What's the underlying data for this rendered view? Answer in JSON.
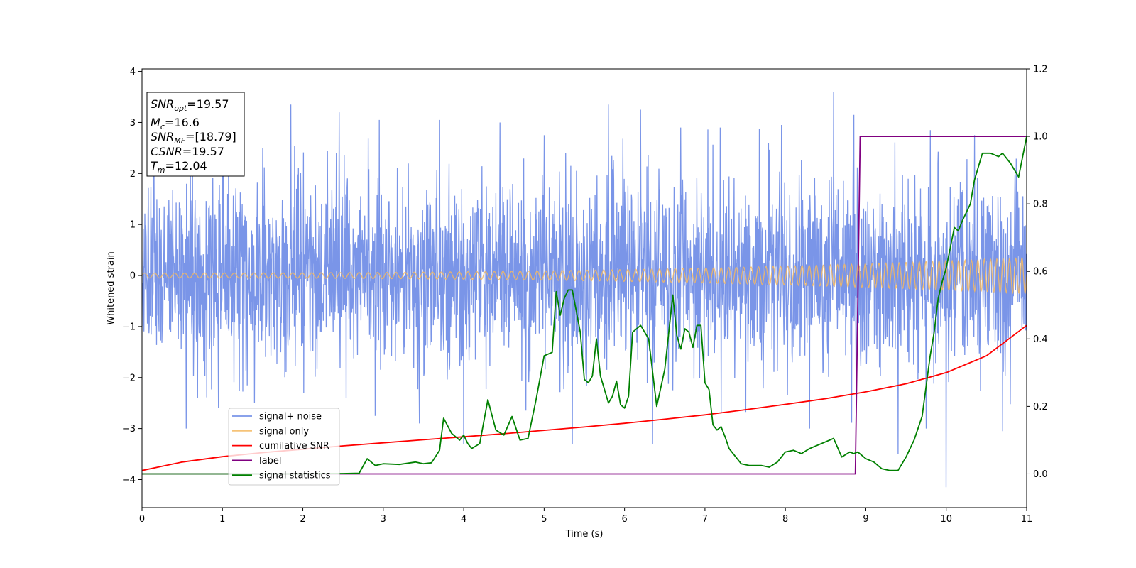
{
  "chart_data": {
    "type": "line",
    "title": "",
    "xlabel": "Time (s)",
    "ylabel": "Whitened strain",
    "y2label": "",
    "xlim": [
      0,
      11
    ],
    "ylim": [
      -4.55,
      4.05
    ],
    "y2lim": [
      -0.1,
      1.2
    ],
    "xticks": [
      "0",
      "1",
      "2",
      "3",
      "4",
      "5",
      "6",
      "7",
      "8",
      "9",
      "10",
      "11"
    ],
    "yticks": [
      "−4",
      "−3",
      "−2",
      "−1",
      "0",
      "1",
      "2",
      "3",
      "4"
    ],
    "y2ticks": [
      "0.0",
      "0.2",
      "0.4",
      "0.6",
      "0.8",
      "1.0",
      "1.2"
    ],
    "grid": false,
    "legend_position": "lower-left",
    "colors": {
      "signal_noise": "#6b8ae6",
      "signal_only": "#f5b860",
      "cumulative_snr": "#ff0000",
      "label": "#800080",
      "signal_statistics": "#008000"
    },
    "series": [
      {
        "name": "signal+ noise",
        "axis": "left",
        "style": "noise band",
        "description_values": {
          "typical_min": -2.3,
          "typical_max": 2.3,
          "peak_max": 3.6,
          "peak_min": -4.15
        },
        "spikes_up": [
          [
            0.6,
            2.7
          ],
          [
            1.0,
            2.4
          ],
          [
            1.5,
            2.5
          ],
          [
            1.85,
            3.35
          ],
          [
            2.45,
            3.2
          ],
          [
            2.95,
            3.05
          ],
          [
            3.7,
            3.05
          ],
          [
            4.45,
            3.0
          ],
          [
            5.0,
            2.75
          ],
          [
            5.8,
            3.35
          ],
          [
            6.2,
            3.25
          ],
          [
            6.7,
            2.9
          ],
          [
            7.2,
            3.15
          ],
          [
            7.95,
            2.95
          ],
          [
            8.6,
            3.6
          ],
          [
            8.85,
            3.15
          ],
          [
            9.8,
            2.85
          ],
          [
            10.35,
            2.75
          ]
        ],
        "spikes_down": [
          [
            0.55,
            -3.0
          ],
          [
            0.95,
            -2.6
          ],
          [
            1.4,
            -2.5
          ],
          [
            2.9,
            -2.75
          ],
          [
            3.45,
            -2.9
          ],
          [
            4.0,
            -3.3
          ],
          [
            5.35,
            -3.3
          ],
          [
            6.35,
            -3.3
          ],
          [
            7.2,
            -2.7
          ],
          [
            8.3,
            -3.0
          ],
          [
            9.4,
            -3.5
          ],
          [
            9.75,
            -3.0
          ],
          [
            10.0,
            -4.15
          ],
          [
            10.7,
            -3.05
          ]
        ]
      },
      {
        "name": "signal only",
        "axis": "left",
        "style": "chirp",
        "amplitude_start": 0.05,
        "amplitude_end": 0.35,
        "freq_start_hz": 8,
        "freq_end_hz": 13
      },
      {
        "name": "cumilative SNR",
        "axis": "right",
        "x": [
          0,
          0.5,
          1,
          1.5,
          2,
          2.5,
          3,
          3.5,
          4,
          4.5,
          5,
          5.5,
          6,
          6.5,
          7,
          7.5,
          8,
          8.5,
          9,
          9.5,
          10,
          10.5,
          11
        ],
        "y": [
          0.01,
          0.035,
          0.051,
          0.063,
          0.073,
          0.083,
          0.092,
          0.101,
          0.11,
          0.119,
          0.129,
          0.139,
          0.15,
          0.162,
          0.175,
          0.19,
          0.206,
          0.223,
          0.243,
          0.267,
          0.3,
          0.35,
          0.44
        ]
      },
      {
        "name": "label",
        "axis": "right",
        "x": [
          0,
          8.87,
          8.93,
          11
        ],
        "y": [
          0.0,
          0.0,
          1.0,
          1.0
        ]
      },
      {
        "name": "signal statistics",
        "axis": "right",
        "x": [
          0,
          0.5,
          1,
          1.5,
          2,
          2.5,
          2.7,
          2.8,
          2.9,
          3.0,
          3.2,
          3.4,
          3.5,
          3.6,
          3.7,
          3.75,
          3.85,
          3.95,
          4.0,
          4.05,
          4.1,
          4.2,
          4.3,
          4.4,
          4.5,
          4.6,
          4.7,
          4.8,
          4.9,
          5.0,
          5.1,
          5.15,
          5.2,
          5.25,
          5.3,
          5.35,
          5.45,
          5.5,
          5.55,
          5.6,
          5.65,
          5.7,
          5.8,
          5.85,
          5.9,
          5.95,
          6.0,
          6.05,
          6.1,
          6.2,
          6.3,
          6.4,
          6.5,
          6.6,
          6.65,
          6.7,
          6.75,
          6.8,
          6.85,
          6.9,
          6.95,
          7.0,
          7.05,
          7.1,
          7.15,
          7.2,
          7.25,
          7.3,
          7.35,
          7.45,
          7.55,
          7.6,
          7.7,
          7.8,
          7.9,
          8.0,
          8.1,
          8.2,
          8.3,
          8.4,
          8.5,
          8.6,
          8.7,
          8.8,
          8.85,
          8.9,
          9.0,
          9.1,
          9.2,
          9.3,
          9.4,
          9.5,
          9.6,
          9.7,
          9.8,
          9.85,
          9.9,
          9.95,
          10.0,
          10.1,
          10.15,
          10.2,
          10.3,
          10.35,
          10.45,
          10.55,
          10.65,
          10.7,
          10.8,
          10.9,
          11.0
        ],
        "y": [
          0.0,
          0.0,
          0.0,
          0.0,
          0.0,
          0.001,
          0.002,
          0.045,
          0.025,
          0.03,
          0.028,
          0.035,
          0.03,
          0.033,
          0.07,
          0.165,
          0.12,
          0.1,
          0.115,
          0.09,
          0.075,
          0.09,
          0.22,
          0.13,
          0.115,
          0.17,
          0.1,
          0.105,
          0.22,
          0.35,
          0.36,
          0.54,
          0.47,
          0.52,
          0.545,
          0.545,
          0.42,
          0.28,
          0.27,
          0.29,
          0.4,
          0.29,
          0.21,
          0.23,
          0.275,
          0.205,
          0.195,
          0.23,
          0.42,
          0.44,
          0.4,
          0.2,
          0.31,
          0.53,
          0.41,
          0.37,
          0.43,
          0.42,
          0.375,
          0.44,
          0.44,
          0.27,
          0.25,
          0.145,
          0.13,
          0.14,
          0.11,
          0.075,
          0.06,
          0.03,
          0.025,
          0.025,
          0.025,
          0.02,
          0.035,
          0.065,
          0.07,
          0.06,
          0.075,
          0.085,
          0.095,
          0.105,
          0.05,
          0.065,
          0.06,
          0.065,
          0.045,
          0.035,
          0.015,
          0.01,
          0.01,
          0.05,
          0.1,
          0.17,
          0.35,
          0.42,
          0.52,
          0.57,
          0.61,
          0.73,
          0.72,
          0.75,
          0.8,
          0.87,
          0.95,
          0.95,
          0.94,
          0.95,
          0.92,
          0.88,
          1.0
        ]
      }
    ],
    "info_box": [
      {
        "base": "SNR",
        "sub": "opt",
        "value": "=19.57"
      },
      {
        "base": "M",
        "sub": "c",
        "value": "=16.6"
      },
      {
        "base": "SNR",
        "sub": "MF",
        "value": "=[18.79]"
      },
      {
        "base": "CSNR",
        "sub": "",
        "value": "=19.57"
      },
      {
        "base": "T",
        "sub": "m",
        "value": "=12.04"
      }
    ]
  }
}
